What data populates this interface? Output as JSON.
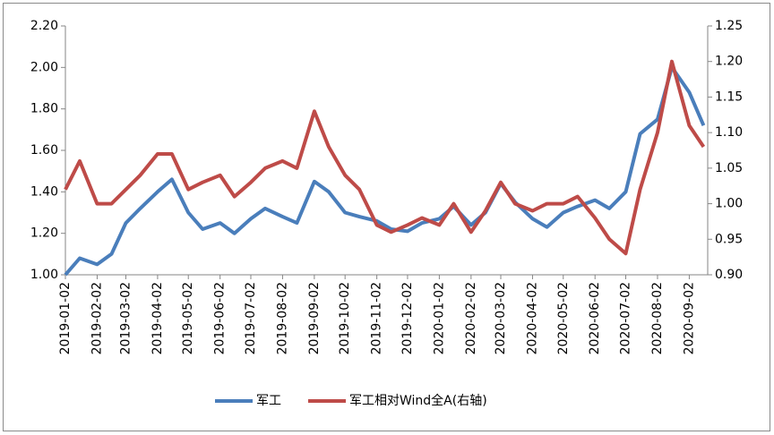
{
  "chart_data": {
    "type": "line",
    "x": [
      "2019-01-02",
      "2019-01-16",
      "2019-02-02",
      "2019-02-16",
      "2019-03-02",
      "2019-03-16",
      "2019-04-02",
      "2019-04-16",
      "2019-05-02",
      "2019-05-16",
      "2019-06-02",
      "2019-06-16",
      "2019-07-02",
      "2019-07-16",
      "2019-08-02",
      "2019-08-16",
      "2019-09-02",
      "2019-09-16",
      "2019-10-02",
      "2019-10-16",
      "2019-11-02",
      "2019-11-16",
      "2019-12-02",
      "2019-12-16",
      "2020-01-02",
      "2020-01-16",
      "2020-02-02",
      "2020-02-16",
      "2020-03-02",
      "2020-03-16",
      "2020-04-02",
      "2020-04-16",
      "2020-05-02",
      "2020-05-16",
      "2020-06-02",
      "2020-06-16",
      "2020-07-02",
      "2020-07-16",
      "2020-08-02",
      "2020-08-16",
      "2020-09-02",
      "2020-09-16"
    ],
    "series": [
      {
        "name": "军工",
        "color": "#4a7ebb",
        "values": [
          1.0,
          1.08,
          1.05,
          1.1,
          1.25,
          1.32,
          1.4,
          1.46,
          1.3,
          1.22,
          1.25,
          1.2,
          1.27,
          1.32,
          1.28,
          1.25,
          1.45,
          1.4,
          1.3,
          1.28,
          1.26,
          1.22,
          1.21,
          1.25,
          1.27,
          1.33,
          1.24,
          1.3,
          1.44,
          1.35,
          1.27,
          1.23,
          1.3,
          1.33,
          1.36,
          1.32,
          1.4,
          1.68,
          1.75,
          2.0,
          1.88,
          1.72
        ]
      },
      {
        "name": "军工相对Wind全A(右轴)",
        "color": "#be4b48",
        "axis": "y2",
        "values": [
          1.02,
          1.06,
          1.0,
          1.0,
          1.02,
          1.04,
          1.07,
          1.07,
          1.02,
          1.03,
          1.04,
          1.01,
          1.03,
          1.05,
          1.06,
          1.05,
          1.13,
          1.08,
          1.04,
          1.02,
          0.97,
          0.96,
          0.97,
          0.98,
          0.97,
          1.0,
          0.96,
          0.99,
          1.03,
          1.0,
          0.99,
          1.0,
          1.0,
          1.01,
          0.98,
          0.95,
          0.93,
          1.02,
          1.1,
          1.2,
          1.11,
          1.08
        ]
      }
    ],
    "xlim": [
      "2019-01-02",
      "2020-09-20"
    ],
    "xticks": [
      "2019-01-02",
      "2019-02-02",
      "2019-03-02",
      "2019-04-02",
      "2019-05-02",
      "2019-06-02",
      "2019-07-02",
      "2019-08-02",
      "2019-09-02",
      "2019-10-02",
      "2019-11-02",
      "2019-12-02",
      "2020-01-02",
      "2020-02-02",
      "2020-03-02",
      "2020-04-02",
      "2020-05-02",
      "2020-06-02",
      "2020-07-02",
      "2020-08-02",
      "2020-09-02"
    ],
    "ylim": [
      1.0,
      2.2
    ],
    "yticks": [
      {
        "value": 1.0,
        "label": "1.00"
      },
      {
        "value": 1.2,
        "label": "1.20"
      },
      {
        "value": 1.4,
        "label": "1.40"
      },
      {
        "value": 1.6,
        "label": "1.60"
      },
      {
        "value": 1.8,
        "label": "1.80"
      },
      {
        "value": 2.0,
        "label": "2.00"
      },
      {
        "value": 2.2,
        "label": "2.20"
      }
    ],
    "y2lim": [
      0.9,
      1.25
    ],
    "y2ticks": [
      {
        "value": 0.9,
        "label": "0.90"
      },
      {
        "value": 0.95,
        "label": "0.95"
      },
      {
        "value": 1.0,
        "label": "1.00"
      },
      {
        "value": 1.05,
        "label": "1.05"
      },
      {
        "value": 1.1,
        "label": "1.10"
      },
      {
        "value": 1.15,
        "label": "1.15"
      },
      {
        "value": 1.2,
        "label": "1.20"
      },
      {
        "value": 1.25,
        "label": "1.25"
      }
    ],
    "legend": "bottom"
  }
}
